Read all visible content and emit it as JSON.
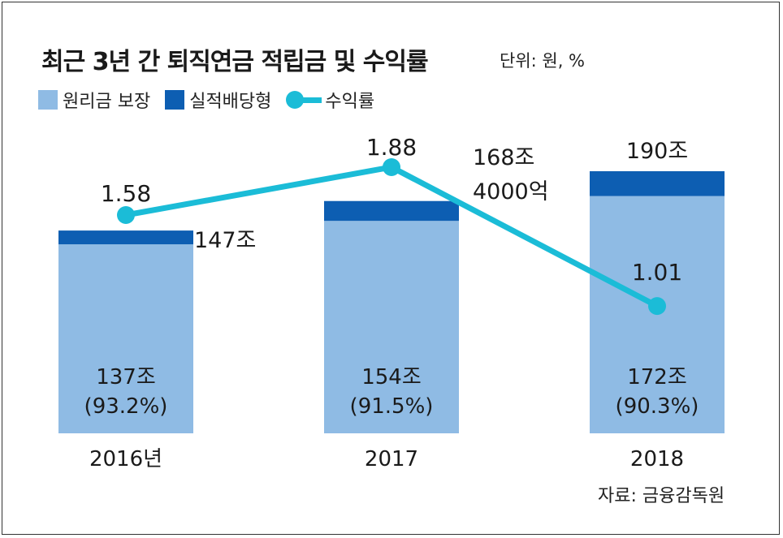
{
  "title": "최근 3년 간 퇴직연금 적립금 및 수익률",
  "unit": "단위: 원, %",
  "legend": [
    {
      "label": "원리금 보장",
      "color": "#8fbbe4"
    },
    {
      "label": "실적배당형",
      "color": "#0d5eb2"
    },
    {
      "label": "수익률",
      "color": "#1bbcd7"
    }
  ],
  "source": "자료: 금융감독원",
  "chart_data": {
    "type": "bar",
    "categories": [
      "2016년",
      "2017",
      "2018"
    ],
    "series": [
      {
        "name": "원리금 보장",
        "values": [
          137,
          154,
          172
        ],
        "labels": [
          "137조",
          "154조",
          "172조"
        ],
        "share_labels": [
          "(93.2%)",
          "(91.5%)",
          "(90.3%)"
        ],
        "color": "#8fbbe4"
      },
      {
        "name": "실적배당형",
        "values": [
          10,
          14.4,
          18
        ],
        "color": "#0d5eb2"
      }
    ],
    "totals": [
      147,
      168.4,
      190
    ],
    "total_labels": [
      [
        "147조"
      ],
      [
        "168조",
        "4000억"
      ],
      [
        "190조"
      ]
    ],
    "line_series": {
      "name": "수익률",
      "values": [
        1.58,
        1.88,
        1.01
      ],
      "labels": [
        "1.58",
        "1.88",
        "1.01"
      ],
      "color": "#1bbcd7"
    }
  }
}
